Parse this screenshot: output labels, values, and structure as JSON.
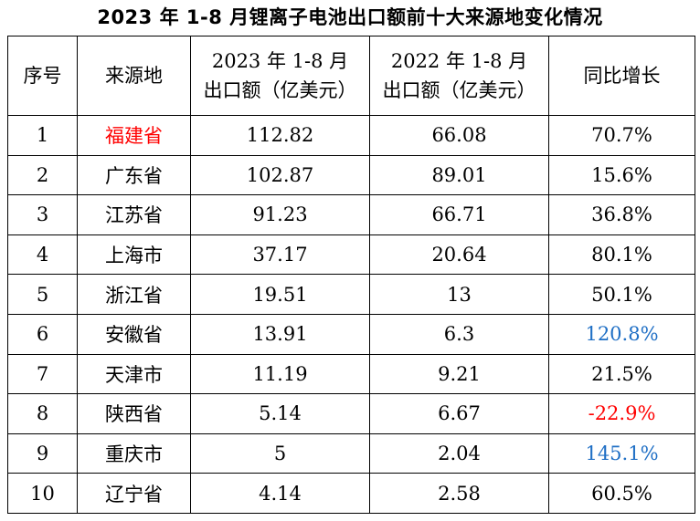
{
  "title": "2023 年 1-8 月锂离子电池出口额前十大来源地变化情况",
  "headers": {
    "rank": "序号",
    "origin": "来源地",
    "y2023_line1": "2023 年 1-8 月",
    "y2023_line2": "出口额（亿美元）",
    "y2022_line1": "2022 年 1-8 月",
    "y2022_line2": "出口额（亿美元）",
    "yoy": "同比增长"
  },
  "rows": [
    {
      "rank": "1",
      "origin": "福建省",
      "v2023": "112.82",
      "v2022": "66.08",
      "yoy": "70.7%"
    },
    {
      "rank": "2",
      "origin": "广东省",
      "v2023": "102.87",
      "v2022": "89.01",
      "yoy": "15.6%"
    },
    {
      "rank": "3",
      "origin": "江苏省",
      "v2023": "91.23",
      "v2022": "66.71",
      "yoy": "36.8%"
    },
    {
      "rank": "4",
      "origin": "上海市",
      "v2023": "37.17",
      "v2022": "20.64",
      "yoy": "80.1%"
    },
    {
      "rank": "5",
      "origin": "浙江省",
      "v2023": "19.51",
      "v2022": "13",
      "yoy": "50.1%"
    },
    {
      "rank": "6",
      "origin": "安徽省",
      "v2023": "13.91",
      "v2022": "6.3",
      "yoy": "120.8%"
    },
    {
      "rank": "7",
      "origin": "天津市",
      "v2023": "11.19",
      "v2022": "9.21",
      "yoy": "21.5%"
    },
    {
      "rank": "8",
      "origin": "陕西省",
      "v2023": "5.14",
      "v2022": "6.67",
      "yoy": "-22.9%"
    },
    {
      "rank": "9",
      "origin": "重庆市",
      "v2023": "5",
      "v2022": "2.04",
      "yoy": "145.1%"
    },
    {
      "rank": "10",
      "origin": "辽宁省",
      "v2023": "4.14",
      "v2022": "2.58",
      "yoy": "60.5%"
    }
  ],
  "colors": {
    "highlight_origin": "#ff0000",
    "yoy_high": "#1f6fc5",
    "yoy_negative": "#ff0000"
  }
}
